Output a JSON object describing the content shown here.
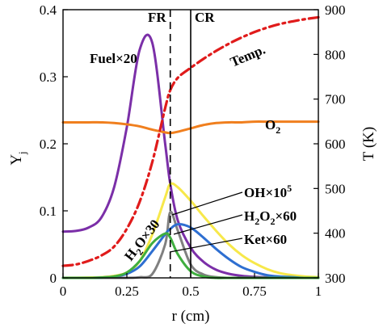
{
  "chart_data": {
    "type": "line",
    "x": [
      0,
      0.05,
      0.1,
      0.15,
      0.2,
      0.25,
      0.3,
      0.35,
      0.4,
      0.42,
      0.45,
      0.5,
      0.55,
      0.6,
      0.65,
      0.7,
      0.75,
      0.8,
      0.85,
      0.9,
      0.95,
      1.0
    ],
    "series": [
      {
        "name": "Fuel×20",
        "axis": "left",
        "color": "#7b2fa8",
        "dash": "solid",
        "values": [
          0.069,
          0.07,
          0.075,
          0.09,
          0.135,
          0.225,
          0.34,
          0.35,
          0.2,
          0.14,
          0.085,
          0.045,
          0.024,
          0.012,
          0.006,
          0.003,
          0.0015,
          0.0008,
          0.0004,
          0.0002,
          0.0001,
          0.0
        ]
      },
      {
        "name": "O2",
        "axis": "left",
        "color": "#f07f1e",
        "dash": "solid",
        "values": [
          0.232,
          0.232,
          0.232,
          0.232,
          0.231,
          0.229,
          0.226,
          0.221,
          0.217,
          0.216,
          0.218,
          0.223,
          0.228,
          0.231,
          0.232,
          0.232,
          0.233,
          0.233,
          0.233,
          0.233,
          0.233,
          0.233
        ]
      },
      {
        "name": "H2O×30",
        "axis": "left",
        "color": "#f7e84a",
        "dash": "solid",
        "values": [
          0.0,
          0.0002,
          0.0005,
          0.001,
          0.003,
          0.008,
          0.025,
          0.065,
          0.12,
          0.14,
          0.135,
          0.115,
          0.092,
          0.07,
          0.05,
          0.034,
          0.022,
          0.013,
          0.007,
          0.004,
          0.002,
          0.001
        ]
      },
      {
        "name": "OH×10⁵",
        "axis": "left",
        "color": "#808080",
        "dash": "solid",
        "values": [
          0.0,
          0.0,
          0.0,
          0.0,
          0.0,
          0.0,
          0.001,
          0.006,
          0.05,
          0.098,
          0.07,
          0.02,
          0.005,
          0.001,
          0.0,
          0.0,
          0.0,
          0.0,
          0.0,
          0.0,
          0.0,
          0.0
        ]
      },
      {
        "name": "H2O2×60",
        "axis": "left",
        "color": "#2e6fd1",
        "dash": "solid",
        "values": [
          0.0,
          0.0,
          0.0,
          0.0005,
          0.002,
          0.006,
          0.017,
          0.04,
          0.065,
          0.073,
          0.08,
          0.075,
          0.06,
          0.043,
          0.028,
          0.016,
          0.009,
          0.004,
          0.002,
          0.001,
          0.0,
          0.0
        ]
      },
      {
        "name": "Ket×60",
        "axis": "left",
        "color": "#3fae3f",
        "dash": "solid",
        "values": [
          0.0,
          0.0,
          0.0,
          0.0005,
          0.002,
          0.008,
          0.025,
          0.052,
          0.066,
          0.06,
          0.035,
          0.01,
          0.002,
          0.0,
          0.0,
          0.0,
          0.0,
          0.0,
          0.0,
          0.0,
          0.0,
          0.0
        ]
      },
      {
        "name": "Temp.",
        "axis": "right",
        "color": "#e01b1b",
        "dash": "dashdot",
        "values": [
          327,
          330,
          338,
          350,
          370,
          410,
          470,
          560,
          680,
          720,
          748,
          770,
          790,
          808,
          824,
          838,
          850,
          860,
          868,
          874,
          879,
          883
        ]
      }
    ],
    "xlabel": "r (cm)",
    "ylabel": "Y",
    "ylabel_sub": "j",
    "y2label": "T (K)",
    "xlim": [
      0,
      1
    ],
    "ylim": [
      0,
      0.4
    ],
    "y2lim": [
      300,
      900
    ],
    "xticks": [
      "0",
      "0.25",
      "0.5",
      "0.75",
      "1"
    ],
    "yticks": [
      "0",
      "0.1",
      "0.2",
      "0.3",
      "0.4"
    ],
    "y2ticks": [
      "300",
      "400",
      "500",
      "600",
      "700",
      "800",
      "900"
    ],
    "grid": false,
    "vlines": [
      {
        "label": "FR",
        "x": 0.42,
        "dash": "dashed"
      },
      {
        "label": "CR",
        "x": 0.5,
        "dash": "solid"
      }
    ],
    "annotations": {
      "fuel": "Fuel×20",
      "temp": "Temp.",
      "o2_base": "O",
      "o2_sub": "2",
      "h2o_base": "H",
      "h2o_sub": "2",
      "h2o_tail": "O×30",
      "oh_base": "OH×10",
      "oh_sup": "5",
      "h2o2_a": "H",
      "h2o2_sub1": "2",
      "h2o2_b": "O",
      "h2o2_sub2": "2",
      "h2o2_tail": "×60",
      "ket": "Ket×60"
    }
  }
}
